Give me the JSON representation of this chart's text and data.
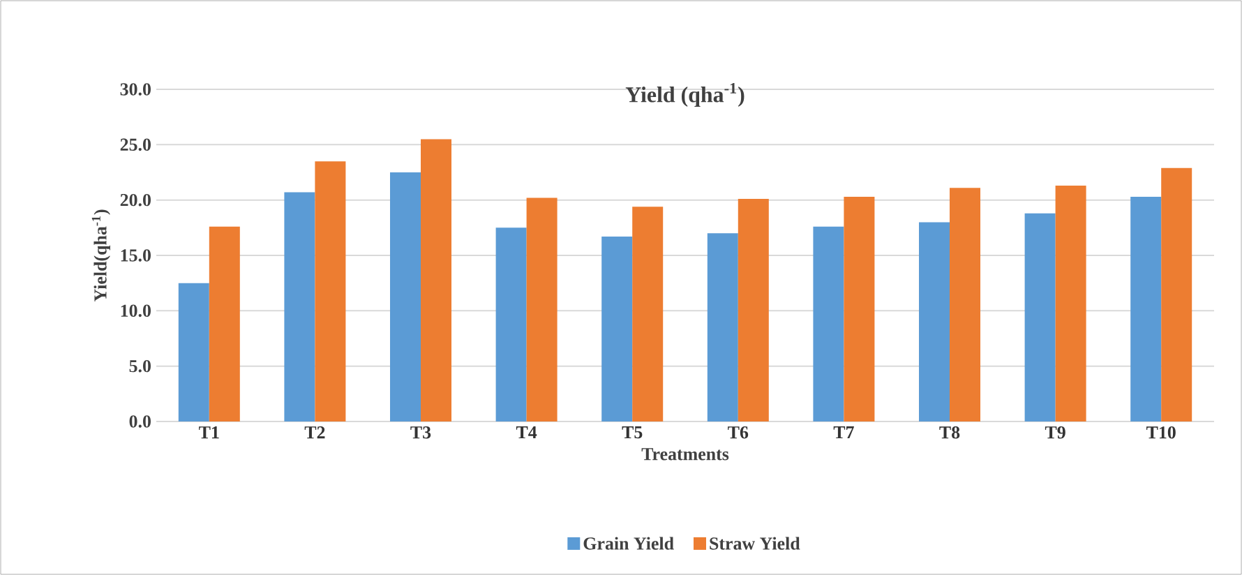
{
  "chart_data": {
    "type": "bar",
    "title": "Yield (qha$^{-1}$)",
    "xlabel": "Treatments",
    "ylabel": "Yield(qha$^{-1}$)",
    "categories": [
      "T1",
      "T2",
      "T3",
      "T4",
      "T5",
      "T6",
      "T7",
      "T8",
      "T9",
      "T10"
    ],
    "series": [
      {
        "name": "Grain Yield",
        "color": "#5b9bd5",
        "values": [
          12.5,
          20.7,
          22.5,
          17.5,
          16.7,
          17.0,
          17.6,
          18.0,
          18.8,
          20.3
        ]
      },
      {
        "name": "Straw Yield",
        "color": "#ed7d31",
        "values": [
          17.6,
          23.5,
          25.5,
          20.2,
          19.4,
          20.1,
          20.3,
          21.1,
          21.3,
          22.9
        ]
      }
    ],
    "ylim": [
      0,
      30
    ],
    "yticks": [
      {
        "value": 0,
        "label": "0.0"
      },
      {
        "value": 5,
        "label": "5.0"
      },
      {
        "value": 10,
        "label": "10.0"
      },
      {
        "value": 15,
        "label": "15.0"
      },
      {
        "value": 20,
        "label": "20.0"
      },
      {
        "value": 25,
        "label": "25.0"
      },
      {
        "value": 30,
        "label": "30.0"
      }
    ],
    "grid": "y",
    "legend": "bottom"
  }
}
